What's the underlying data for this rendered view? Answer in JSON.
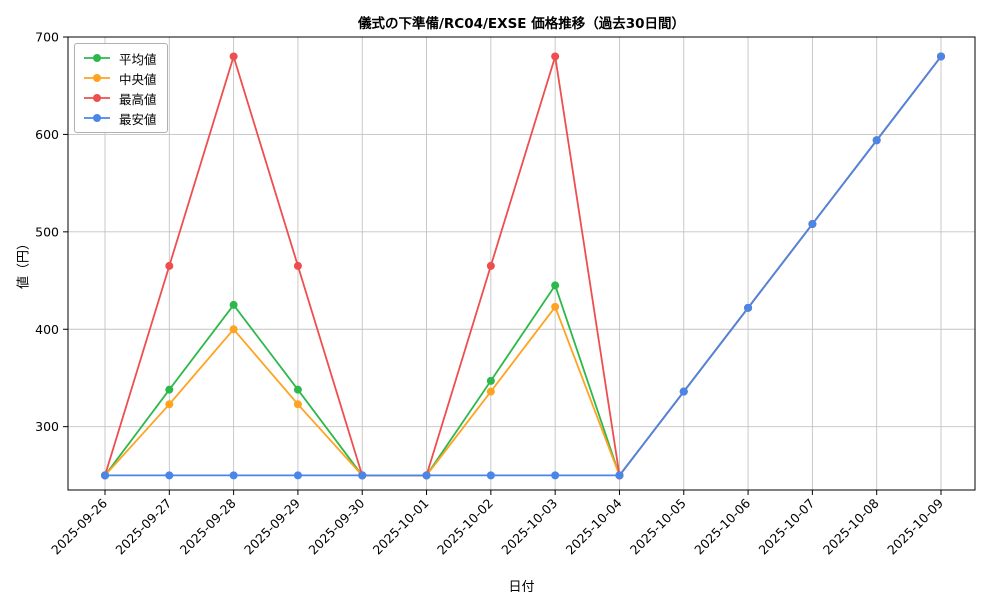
{
  "chart_data": {
    "type": "line",
    "title": "儀式の下準備/RC04/EXSE 価格推移（過去30日間）",
    "xlabel": "日付",
    "ylabel": "値（円）",
    "x": [
      "2025-09-26",
      "2025-09-27",
      "2025-09-28",
      "2025-09-29",
      "2025-09-30",
      "2025-10-01",
      "2025-10-02",
      "2025-10-03",
      "2025-10-04",
      "2025-10-05",
      "2025-10-06",
      "2025-10-07",
      "2025-10-08",
      "2025-10-09"
    ],
    "series": [
      {
        "name": "平均値",
        "color": "#2db84c",
        "values": [
          250,
          338,
          425,
          338,
          250,
          250,
          347,
          445,
          250,
          336,
          422,
          508,
          594,
          680
        ]
      },
      {
        "name": "中央値",
        "color": "#ffa321",
        "values": [
          250,
          323,
          400,
          323,
          250,
          250,
          336,
          423,
          250,
          336,
          422,
          508,
          594,
          680
        ]
      },
      {
        "name": "最高値",
        "color": "#ef4e4e",
        "values": [
          250,
          465,
          680,
          465,
          250,
          250,
          465,
          680,
          250,
          336,
          422,
          508,
          594,
          680
        ]
      },
      {
        "name": "最安値",
        "color": "#4a86e8",
        "values": [
          250,
          250,
          250,
          250,
          250,
          250,
          250,
          250,
          250,
          336,
          422,
          508,
          594,
          680
        ]
      }
    ],
    "yticks": [
      300,
      400,
      500,
      600,
      700
    ],
    "ylim": [
      235,
      700
    ],
    "grid": true,
    "legend_position": "upper left"
  }
}
